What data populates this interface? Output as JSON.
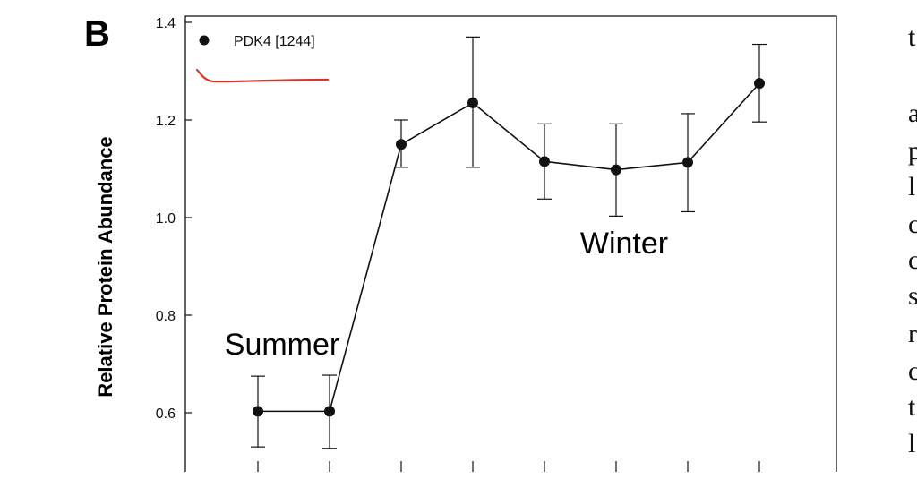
{
  "figure": {
    "panel_label": "B",
    "background_text_fragments": [
      "t",
      "a",
      "p",
      "l",
      "c",
      "c",
      "s",
      "r",
      "c",
      "t",
      "l"
    ]
  },
  "chart_data": {
    "type": "line",
    "title": "",
    "xlabel": "",
    "ylabel": "Relative Protein Abundance",
    "x": [
      1,
      2,
      3,
      4,
      5,
      6,
      7,
      8
    ],
    "xlim": [
      0.0,
      8.8
    ],
    "ylim": [
      0.5,
      1.42
    ],
    "yticks": [
      0.6,
      0.8,
      1.0,
      1.2,
      1.4
    ],
    "ytick_labels": [
      "0.6",
      "0.8",
      "1.0",
      "1.2",
      "1.4"
    ],
    "grid": false,
    "legend_position": "top-left",
    "series": [
      {
        "name": "PDK4 [1244]",
        "color": "#111111",
        "values": [
          0.603,
          0.603,
          1.15,
          1.235,
          1.115,
          1.098,
          1.113,
          1.275
        ],
        "err_low": [
          0.53,
          0.527,
          1.103,
          1.103,
          1.038,
          1.003,
          1.012,
          1.196
        ],
        "err_high": [
          0.675,
          0.677,
          1.2,
          1.37,
          1.192,
          1.192,
          1.213,
          1.355
        ]
      }
    ],
    "annotations": [
      {
        "text": "Summer",
        "near_index": 1.5
      },
      {
        "text": "Winter",
        "near_index": 6.1
      }
    ],
    "highlight_stroke_color": "#d9342b"
  }
}
